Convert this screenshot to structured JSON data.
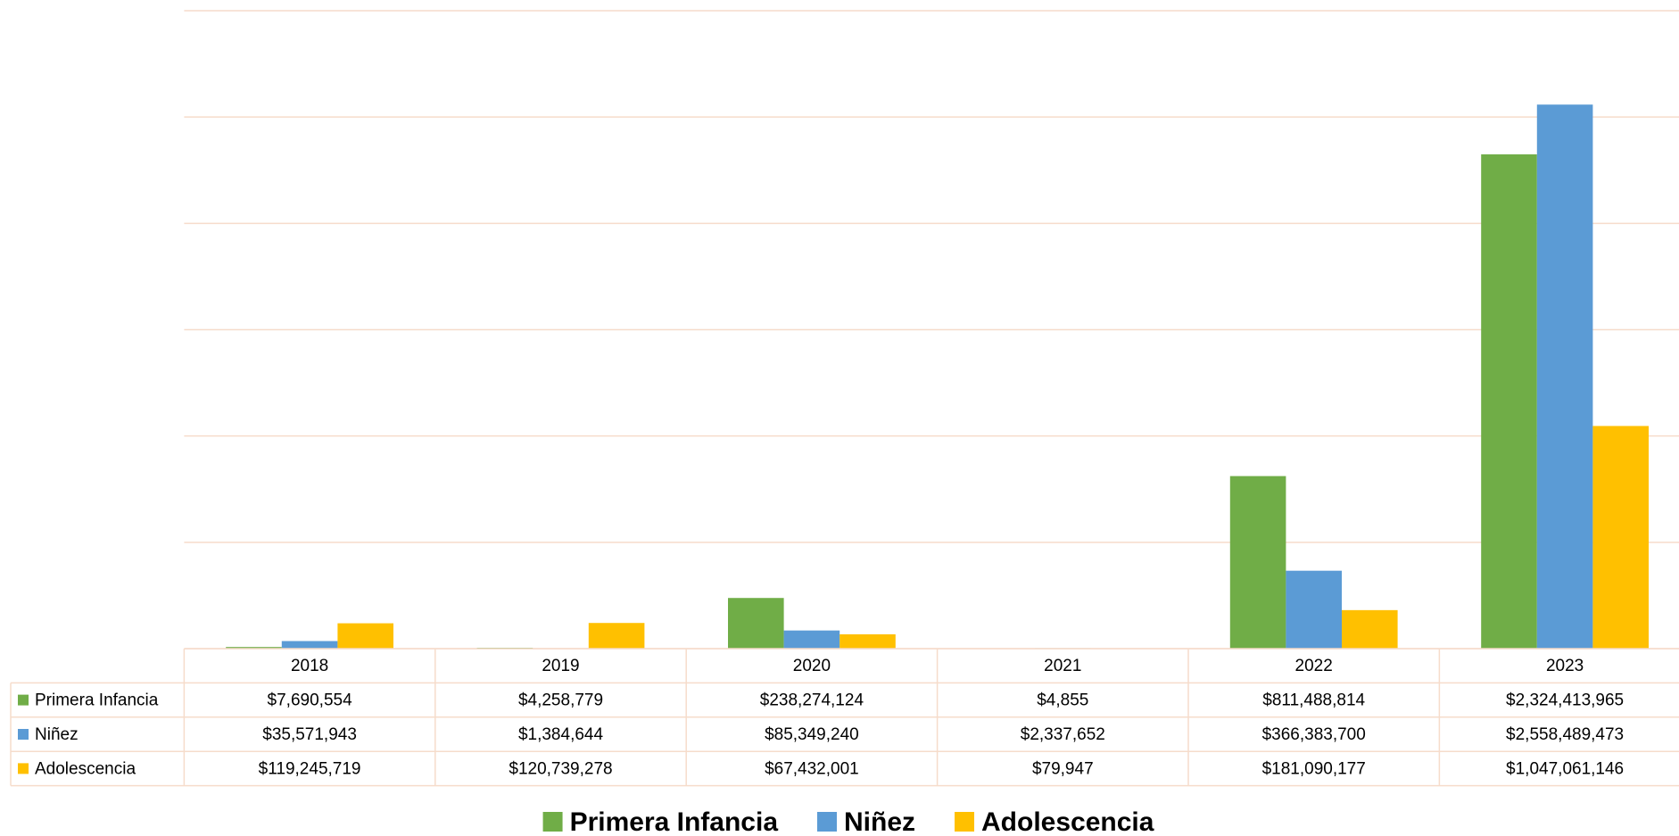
{
  "chart_data": {
    "type": "bar",
    "categories": [
      "2018",
      "2019",
      "2020",
      "2021",
      "2022",
      "2023"
    ],
    "series": [
      {
        "name": "Primera Infancia",
        "color": "#70ad47",
        "values": [
          7690554,
          4258779,
          238274124,
          4855,
          811488814,
          2324413965
        ],
        "value_labels": [
          "$7,690,554",
          "$4,258,779",
          "$238,274,124",
          "$4,855",
          "$811,488,814",
          "$2,324,413,965"
        ]
      },
      {
        "name": "Niñez",
        "color": "#5b9bd5",
        "values": [
          35571943,
          1384644,
          85349240,
          2337652,
          366383700,
          2558489473
        ],
        "value_labels": [
          "$35,571,943",
          "$1,384,644",
          "$85,349,240",
          "$2,337,652",
          "$366,383,700",
          "$2,558,489,473"
        ]
      },
      {
        "name": "Adolescencia",
        "color": "#ffc000",
        "values": [
          119245719,
          120739278,
          67432001,
          79947,
          181090177,
          1047061146
        ],
        "value_labels": [
          "$119,245,719",
          "$120,739,278",
          "$67,432,001",
          "$79,947",
          "$181,090,177",
          "$1,047,061,146"
        ]
      }
    ],
    "ylim": [
      0,
      3000000000
    ],
    "yticks": [
      0,
      500000000,
      1000000000,
      1500000000,
      2000000000,
      2500000000,
      3000000000
    ],
    "grid": true,
    "legend": "bottom"
  }
}
